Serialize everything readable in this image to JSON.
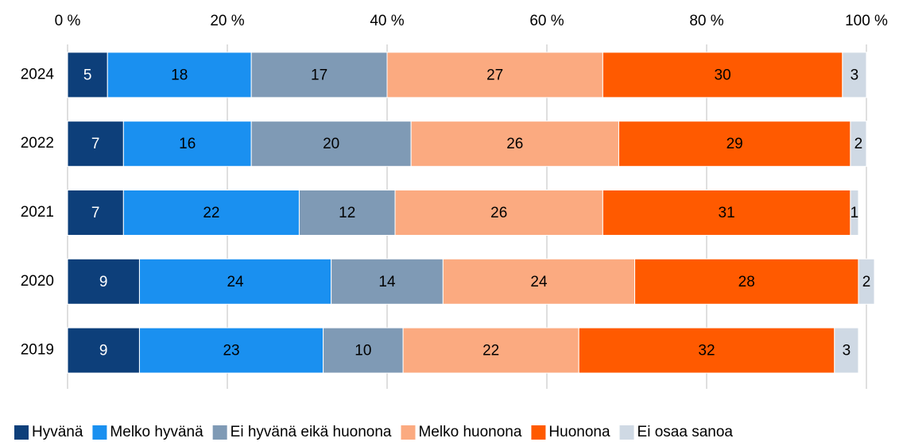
{
  "chart_data": {
    "type": "stacked-bar-horizontal",
    "categories": [
      "2024",
      "2022",
      "2021",
      "2020",
      "2019"
    ],
    "series": [
      {
        "name": "Hyvänä",
        "color": "#0d3f7a",
        "values": [
          5,
          7,
          7,
          9,
          9
        ]
      },
      {
        "name": "Melko hyvänä",
        "color": "#1a90f0",
        "values": [
          18,
          16,
          22,
          24,
          23
        ]
      },
      {
        "name": "Ei hyvänä eikä huonona",
        "color": "#7f9ab5",
        "values": [
          17,
          20,
          12,
          14,
          10
        ]
      },
      {
        "name": "Melko huonona",
        "color": "#fbaa80",
        "values": [
          27,
          26,
          26,
          24,
          22
        ]
      },
      {
        "name": "Huonona",
        "color": "#ff5a00",
        "values": [
          30,
          29,
          31,
          28,
          32
        ]
      },
      {
        "name": "Ei osaa sanoa",
        "color": "#cfd9e4",
        "values": [
          3,
          2,
          1,
          2,
          3
        ]
      }
    ],
    "xlim": [
      0,
      100
    ],
    "xticks": [
      {
        "value": 0,
        "label": "0 %"
      },
      {
        "value": 20,
        "label": "20 %"
      },
      {
        "value": 40,
        "label": "40 %"
      },
      {
        "value": 60,
        "label": "60 %"
      },
      {
        "value": 80,
        "label": "80 %"
      },
      {
        "value": 100,
        "label": "100 %"
      }
    ],
    "grid": true,
    "legend": "bottom"
  }
}
